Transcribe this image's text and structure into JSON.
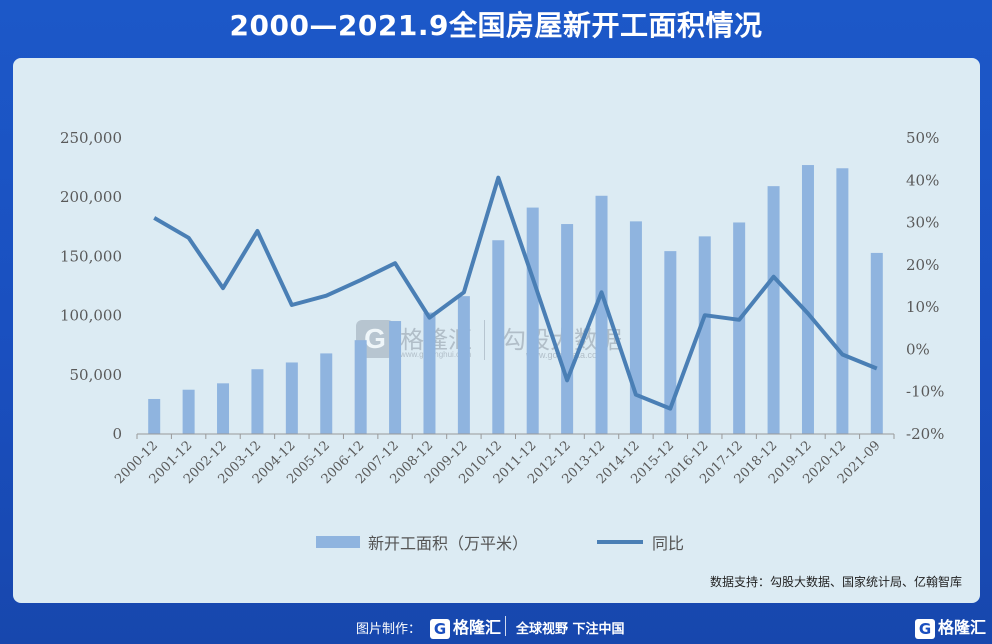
{
  "title": "2000—2021.9全国房屋新开工面积情况",
  "source": "数据支持：勾股大数据、国家统计局、亿翰智库",
  "watermark": {
    "brand": "格隆汇",
    "brand_url": "www.gelonghui.com",
    "brand2": "勾股大数据",
    "brand2_url": "www.gogudata.com",
    "icon": "g-logo-icon"
  },
  "footer": {
    "made_by_label": "图片制作：",
    "logo_text": "格隆汇",
    "slogan": "全球视野 下注中国",
    "logo_right_text": "格隆汇"
  },
  "colors": {
    "background": "#1a4fbf",
    "panel": "#dcebf3",
    "bar": "#8fb4df",
    "line": "#4a7fb5"
  },
  "chart_data": {
    "type": "bar",
    "categories": [
      "2000-12",
      "2001-12",
      "2002-12",
      "2003-12",
      "2004-12",
      "2005-12",
      "2006-12",
      "2007-12",
      "2008-12",
      "2009-12",
      "2010-12",
      "2011-12",
      "2012-12",
      "2013-12",
      "2014-12",
      "2015-12",
      "2016-12",
      "2017-12",
      "2018-12",
      "2019-12",
      "2020-12",
      "2021-09"
    ],
    "series": [
      {
        "name": "新开工面积（万平米）",
        "type": "bar",
        "axis": "left",
        "values": [
          29583,
          37394,
          42800,
          54708,
          60414,
          68064,
          79253,
          95402,
          102553,
          116422,
          163647,
          191237,
          177334,
          201208,
          179592,
          154454,
          166928,
          178654,
          209342,
          227154,
          224433,
          152944
        ]
      },
      {
        "name": "同比",
        "type": "line",
        "axis": "right",
        "values": [
          31.1,
          26.4,
          14.5,
          28.0,
          10.5,
          12.7,
          16.4,
          20.4,
          7.5,
          13.5,
          40.6,
          16.9,
          -7.3,
          13.5,
          -10.7,
          -14.0,
          8.1,
          7.0,
          17.2,
          8.5,
          -1.2,
          -4.5
        ]
      }
    ],
    "y_left": {
      "min": 0,
      "max": 250000,
      "ticks": [
        "0",
        "50,000",
        "100,000",
        "150,000",
        "200,000",
        "250,000"
      ]
    },
    "y_right": {
      "min": -20,
      "max": 50,
      "ticks": [
        "-20%",
        "-10%",
        "0%",
        "10%",
        "20%",
        "30%",
        "40%",
        "50%"
      ]
    },
    "legend": {
      "position": "bottom",
      "items": [
        "新开工面积（万平米）",
        "同比"
      ]
    },
    "grid": false
  }
}
